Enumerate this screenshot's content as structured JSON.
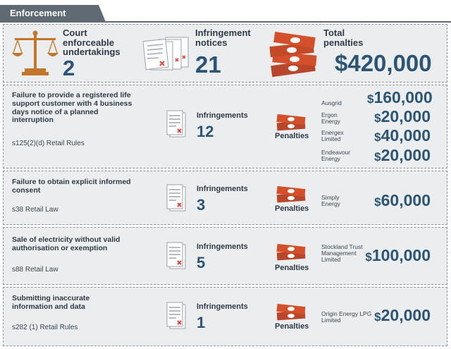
{
  "header": {
    "title": "Enforcement"
  },
  "summary": {
    "court": {
      "label": "Court enforceable undertakings",
      "value": "2"
    },
    "infringements": {
      "label": "Infringement notices",
      "value": "21"
    },
    "penalties": {
      "label": "Total penalties",
      "value": "$420,000"
    }
  },
  "cases": [
    {
      "title": "Failure to provide a registered life support customer with 4 business days notice of a planned interruption",
      "reference": "s125(2)(d) Retail Rules",
      "infringements_label": "Infringements",
      "infringements": "12",
      "penalties_label": "Penalties",
      "entries": [
        {
          "company": "Ausgrid",
          "amount": "160,000"
        },
        {
          "company": "Ergon Energy",
          "amount": "20,000"
        },
        {
          "company": "Energex Limited",
          "amount": "40,000"
        },
        {
          "company": "Endeavour Energy",
          "amount": "20,000"
        }
      ]
    },
    {
      "title": "Failure to obtain explicit informed consent",
      "reference": "s38 Retail Law",
      "infringements_label": "Infringements",
      "infringements": "3",
      "penalties_label": "Penalties",
      "entries": [
        {
          "company": "Simply Energy",
          "amount": "60,000"
        }
      ]
    },
    {
      "title": "Sale of electricity without valid authorisation or exemption",
      "reference": "s88 Retail Law",
      "infringements_label": "Infringements",
      "infringements": "5",
      "penalties_label": "Penalties",
      "entries": [
        {
          "company": "Stockland Trust Management Limited",
          "amount": "100,000"
        }
      ]
    },
    {
      "title": "Submitting inaccurate information and data",
      "reference": "s282 (1) Retail Rules",
      "infringements_label": "Infringements",
      "infringements": "1",
      "penalties_label": "Penalties",
      "entries": [
        {
          "company": "Origin Energy LPG Limited",
          "amount": "20,000"
        }
      ]
    }
  ],
  "currency_symbol": "$",
  "colors": {
    "accent": "#2b5475",
    "money": "#d4502a",
    "tab": "#606a73",
    "panel": "#ebedef"
  },
  "icons": {
    "court": "scales-icon",
    "notice": "notice-document-icon",
    "money": "banknote-stack-icon"
  }
}
